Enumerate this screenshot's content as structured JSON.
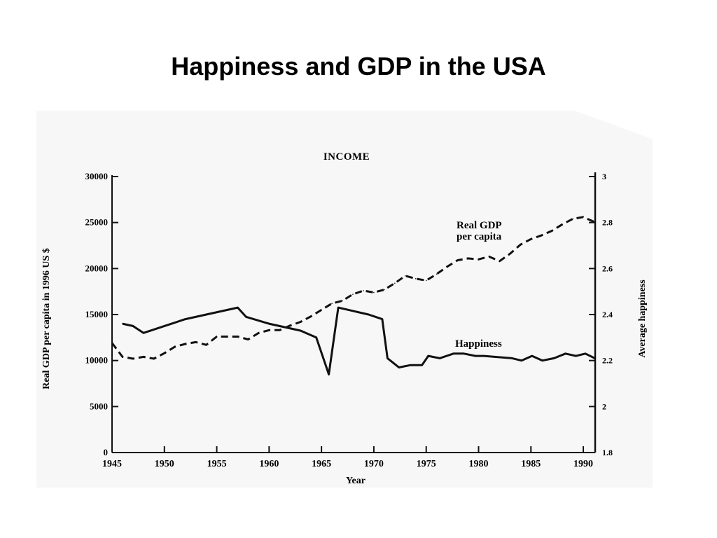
{
  "slide": {
    "title": "Happiness and GDP in the USA"
  },
  "colors": {
    "panel": "#f7f7f7",
    "ink": "#111111"
  },
  "chart_data": {
    "type": "line",
    "title": "INCOME",
    "xlabel": "Year",
    "ylabel_left": "Real GDP per capita in 1996 US $",
    "ylabel_right": "Average happiness",
    "xlim": [
      1945,
      1991
    ],
    "xticks": [
      1945,
      1950,
      1955,
      1960,
      1965,
      1970,
      1975,
      1980,
      1985,
      1990
    ],
    "ylim_left": [
      0,
      30000
    ],
    "yticks_left": [
      0,
      5000,
      10000,
      15000,
      20000,
      25000,
      30000
    ],
    "ylim_right": [
      1.8,
      3
    ],
    "yticks_right": [
      1.8,
      2,
      2.2,
      2.4,
      2.6,
      2.8,
      3
    ],
    "right_tick_labels": [
      "1.8",
      "2",
      "2.2",
      "2.4",
      "2.6",
      "2.8",
      "3"
    ],
    "grid": false,
    "annotations": [
      {
        "text_lines": [
          "Real GDP",
          "per capita"
        ],
        "series": "gdp"
      },
      {
        "text_lines": [
          "Happiness"
        ],
        "series": "happiness"
      }
    ],
    "series": [
      {
        "id": "gdp",
        "axis": "left",
        "style": "dashed",
        "x": [
          1945,
          1946,
          1947,
          1948,
          1949,
          1950,
          1951,
          1952,
          1953,
          1954,
          1955,
          1956,
          1957,
          1958,
          1959,
          1960,
          1961,
          1962,
          1963,
          1964,
          1965,
          1966,
          1967,
          1968,
          1969,
          1970,
          1971,
          1972,
          1973,
          1974,
          1975,
          1976,
          1977,
          1978,
          1979,
          1980,
          1981,
          1982,
          1983,
          1984,
          1985,
          1986,
          1987,
          1988,
          1989,
          1990,
          1991
        ],
        "values": [
          11900,
          10400,
          10200,
          10400,
          10200,
          10800,
          11500,
          11800,
          12000,
          11700,
          12600,
          12600,
          12600,
          12300,
          13000,
          13300,
          13300,
          13800,
          14200,
          14800,
          15500,
          16200,
          16500,
          17200,
          17600,
          17400,
          17700,
          18400,
          19200,
          18900,
          18700,
          19400,
          20200,
          20900,
          21100,
          21000,
          21300,
          20800,
          21600,
          22600,
          23200,
          23600,
          24100,
          24800,
          25400,
          25600,
          25100
        ]
      },
      {
        "id": "happiness",
        "axis": "right",
        "style": "solid",
        "x": [
          1946,
          1947,
          1948,
          1950,
          1952,
          1954,
          1957,
          1957.8,
          1960,
          1963,
          1964.5,
          1965.7,
          1966.6,
          1969.5,
          1970.8,
          1971.3,
          1972.4,
          1973.5,
          1974.6,
          1975.2,
          1976.3,
          1977.6,
          1978.6,
          1979.7,
          1980.5,
          1983.2,
          1984.1,
          1985.1,
          1986.1,
          1987.2,
          1988.3,
          1989.3,
          1990.2,
          1991.1
        ],
        "values": [
          2.36,
          2.35,
          2.32,
          2.35,
          2.38,
          2.4,
          2.43,
          2.39,
          2.36,
          2.33,
          2.3,
          2.14,
          2.43,
          2.4,
          2.38,
          2.21,
          2.17,
          2.18,
          2.18,
          2.22,
          2.21,
          2.23,
          2.23,
          2.22,
          2.22,
          2.21,
          2.2,
          2.22,
          2.2,
          2.21,
          2.23,
          2.22,
          2.23,
          2.21
        ]
      }
    ]
  }
}
